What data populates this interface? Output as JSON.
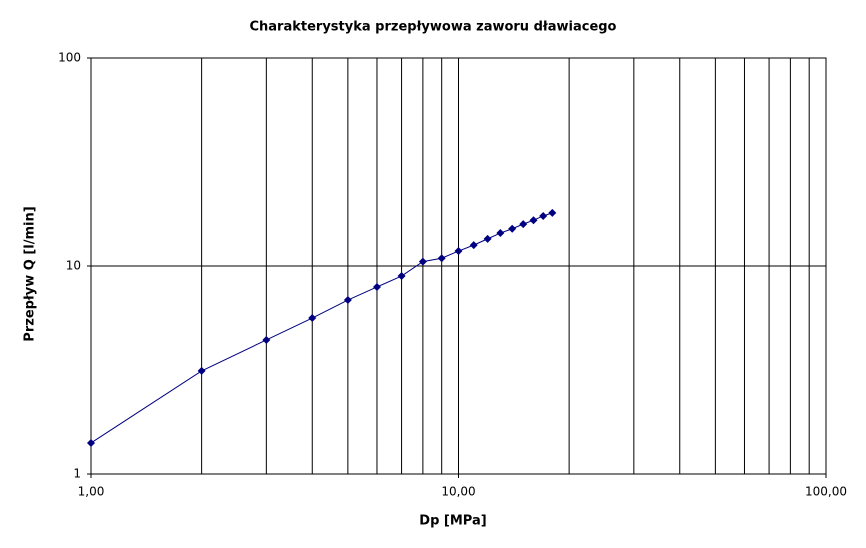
{
  "chart_data": {
    "type": "line",
    "title": "Charakterystyka przepływowa zaworu dławiacego",
    "x_label": "Dp [MPa]",
    "y_label": "Przepływ Q [l/min]",
    "x": [
      1,
      2,
      3,
      4,
      5,
      6,
      7,
      8,
      9,
      10,
      11,
      12,
      13,
      14,
      15,
      16,
      17,
      18
    ],
    "series": [
      {
        "name": "Q",
        "color": "#000080",
        "values": [
          1.41,
          3.13,
          4.41,
          5.62,
          6.86,
          7.93,
          8.95,
          10.5,
          10.9,
          11.8,
          12.6,
          13.5,
          14.4,
          15.1,
          15.9,
          16.6,
          17.4,
          18.0
        ]
      }
    ],
    "x_log": true,
    "y_log": true,
    "xlim": [
      1,
      100
    ],
    "ylim": [
      1,
      100
    ],
    "xticks": [
      {
        "value": 1,
        "label": "1,00"
      },
      {
        "value": 10,
        "label": "10,00"
      },
      {
        "value": 100,
        "label": "100,00"
      }
    ],
    "yticks": [
      1,
      10,
      100
    ],
    "x_minor_grid": [
      2,
      3,
      4,
      5,
      6,
      7,
      8,
      9,
      20,
      30,
      40,
      50,
      60,
      70,
      80,
      90
    ],
    "grid": true
  }
}
